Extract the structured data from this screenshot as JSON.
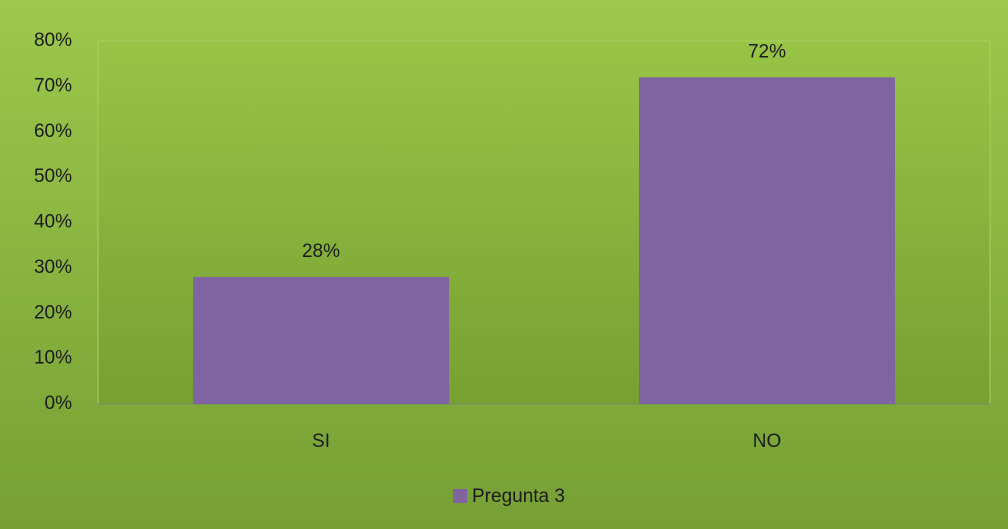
{
  "chart_data": {
    "type": "bar",
    "categories": [
      "SI",
      "NO"
    ],
    "series": [
      {
        "name": "Pregunta 3",
        "color": "#8064a2",
        "values": [
          28,
          72
        ],
        "value_labels": [
          "28%",
          "72%"
        ]
      }
    ],
    "ylim": [
      0,
      80
    ],
    "yticks": [
      {
        "value": 0,
        "label": "0%"
      },
      {
        "value": 10,
        "label": "10%"
      },
      {
        "value": 20,
        "label": "20%"
      },
      {
        "value": 30,
        "label": "30%"
      },
      {
        "value": 40,
        "label": "40%"
      },
      {
        "value": 50,
        "label": "50%"
      },
      {
        "value": 60,
        "label": "60%"
      },
      {
        "value": 70,
        "label": "70%"
      },
      {
        "value": 80,
        "label": "80%"
      }
    ],
    "legend": "bottom"
  }
}
